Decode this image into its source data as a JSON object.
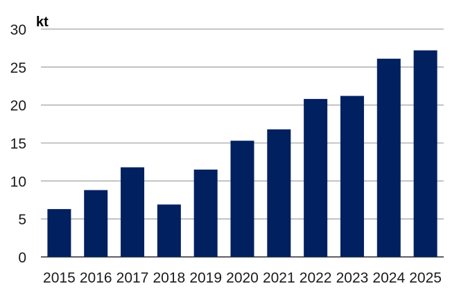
{
  "chart_data": {
    "type": "bar",
    "title": "",
    "xlabel": "",
    "ylabel": "kt",
    "categories": [
      "2015",
      "2016",
      "2017",
      "2018",
      "2019",
      "2020",
      "2021",
      "2022",
      "2023",
      "2024",
      "2025"
    ],
    "values": [
      6.3,
      8.8,
      11.8,
      6.9,
      11.5,
      15.3,
      16.8,
      20.8,
      21.2,
      26.1,
      27.2
    ],
    "ylim": [
      0,
      30
    ],
    "yticks": [
      "0",
      "5",
      "10",
      "15",
      "20",
      "25",
      "30"
    ],
    "grid": true,
    "legend": "none",
    "colors": {
      "bar": "#002060",
      "grid": "#b3b3b3",
      "axis": "#000000"
    }
  }
}
